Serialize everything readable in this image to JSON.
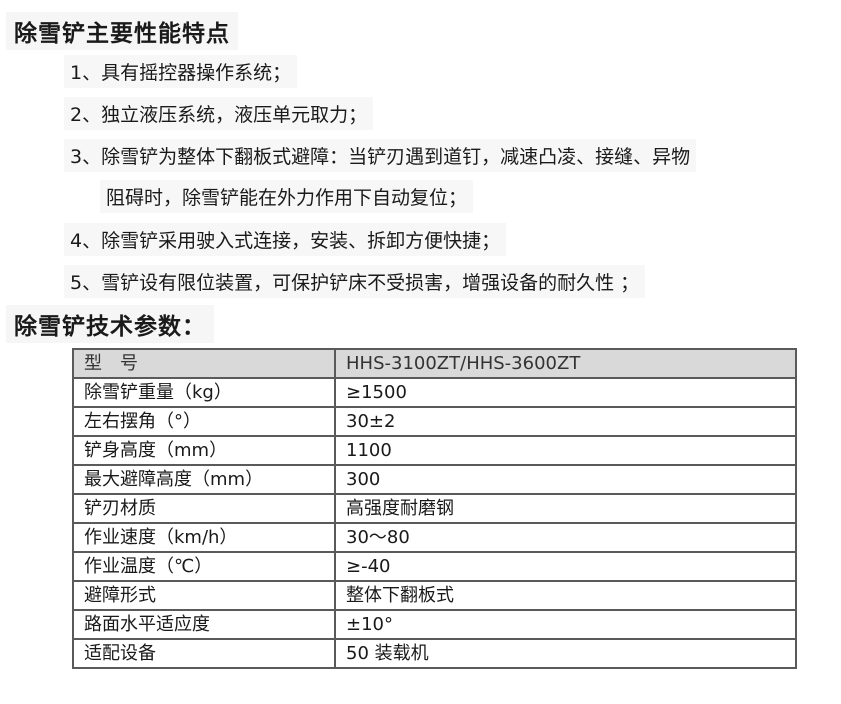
{
  "features": {
    "title": "除雪铲主要性能特点",
    "items": [
      "1、具有摇控器操作系统；",
      "2、独立液压系统，液压单元取力；",
      "3、除雪铲为整体下翻板式避障：当铲刃遇到道钉，减速凸凌、接缝、异物",
      "阻碍时，除雪铲能在外力作用下自动复位；",
      "4、除雪铲采用驶入式连接，安装、拆卸方便快捷；",
      "5、雪铲设有限位装置，可保护铲床不受损害，增强设备的耐久性 ；"
    ]
  },
  "specs": {
    "title": "除雪铲技术参数：",
    "header": {
      "key": "型　号",
      "value": "HHS-3100ZT/HHS-3600ZT"
    },
    "rows": [
      {
        "key": "除雪铲重量（kg）",
        "value": "≥1500"
      },
      {
        "key": "左右摆角（°）",
        "value": "30±2"
      },
      {
        "key": "铲身高度（mm）",
        "value": "1100"
      },
      {
        "key": "最大避障高度（mm）",
        "value": "300"
      },
      {
        "key": "铲刃材质",
        "value": "高强度耐磨钢"
      },
      {
        "key": "作业速度（km/h）",
        "value": "30～80"
      },
      {
        "key": "作业温度（℃）",
        "value": "≥-40"
      },
      {
        "key": "避障形式",
        "value": "整体下翻板式"
      },
      {
        "key": "路面水平适应度",
        "value": "±10°"
      },
      {
        "key": "适配设备",
        "value": "50 装载机"
      }
    ]
  }
}
